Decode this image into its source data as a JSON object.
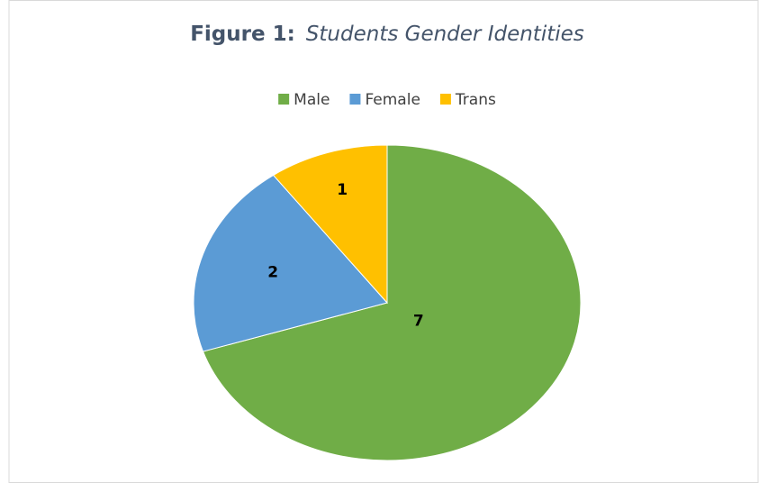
{
  "chart_data": {
    "type": "pie",
    "figure_label": "Figure 1:",
    "title": "Students Gender Identities",
    "categories": [
      "Male",
      "Female",
      "Trans"
    ],
    "values": [
      7,
      2,
      1
    ],
    "colors": [
      "#70ad47",
      "#5b9bd5",
      "#ffc000"
    ],
    "legend": "top"
  }
}
